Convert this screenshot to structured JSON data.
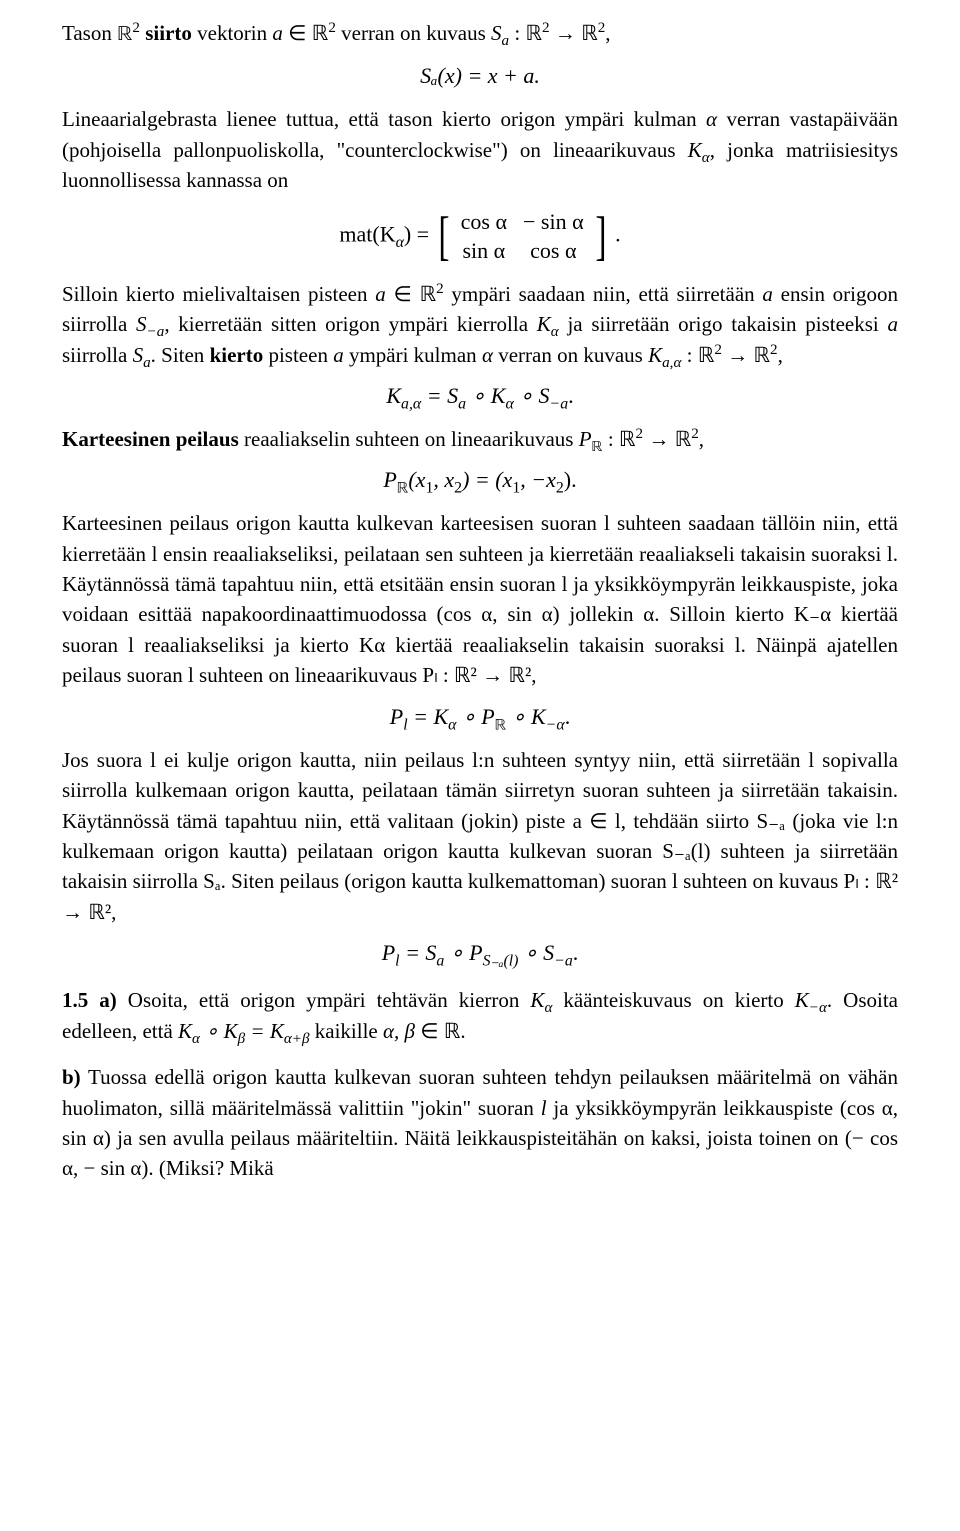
{
  "p1": {
    "a": "Tason ",
    "b": "ℝ",
    "sup2": "2",
    "c": " siirto",
    "d": " vektorin ",
    "e": "a",
    "f": " ∈ ℝ",
    "g": " verran on kuvaus ",
    "h": "S",
    "i": " : ℝ",
    "j": " → ℝ",
    "k": ","
  },
  "eq1": "Sₐ(x) = x + a.",
  "p2": {
    "a": "Lineaarialgebrasta lienee tuttua, että tason kierto origon ympäri kulman ",
    "alpha": "α",
    "b": " verran vastapäivään (pohjoisella pallonpuoliskolla, \"counterclockwise\") on lineaarikuvaus ",
    "c": "K",
    "d": ", jonka matriisiesitys luonnollisessa kannassa on"
  },
  "matrix": {
    "lhs": "mat(K",
    "alpha": "α",
    "eq": ") = ",
    "r1c1": "cos α",
    "r1c2": "− sin α",
    "r2c1": "sin α",
    "r2c2": "cos α",
    "period": "."
  },
  "p3": {
    "a": "Silloin kierto mielivaltaisen pisteen ",
    "b": "a",
    "c": " ∈ ℝ",
    "sup2": "2",
    "d": " ympäri saadaan niin, että siirretään ",
    "e": "a",
    "f": " ensin origoon siirrolla ",
    "g": "S",
    "sub1": "−a",
    "h": ", kierretään sitten origon ympäri kierrolla ",
    "i": "K",
    "sub2": "α",
    "j": " ja siirretään origo takaisin pisteeksi ",
    "k": "a",
    "l": " siirrolla ",
    "m": "S",
    "sub3": "a",
    "n": ". Siten ",
    "bold": "kierto",
    "o": " pisteen ",
    "p": "a",
    "q": " ympäri kulman ",
    "r": "α",
    "s": " verran on kuvaus ",
    "t": "K",
    "sub4": "a,α",
    "u": " : ℝ",
    "v": " → ℝ",
    "w": ","
  },
  "eq2": {
    "a": "K",
    "sub1": "a,α",
    "b": " = S",
    "sub2": "a",
    "c": " ∘ K",
    "sub3": "α",
    "d": " ∘ S",
    "sub4": "−a",
    "e": "."
  },
  "p4": {
    "bold": "Karteesinen peilaus",
    "a": " reaaliakselin suhteen on lineaarikuvaus ",
    "b": "P",
    "sub": "ℝ",
    "c": " : ℝ",
    "sup2": "2",
    "d": " → ℝ",
    "e": ","
  },
  "eq3": {
    "a": "P",
    "sub": "ℝ",
    "b": "(x",
    "s1": "1",
    "c": ", x",
    "s2": "2",
    "d": ") = (x",
    "e": ", −x",
    "f": ")."
  },
  "p5": "Karteesinen peilaus origon kautta kulkevan karteesisen suoran l suhteen saadaan tällöin niin, että kierretään l ensin reaaliakseliksi, peilataan sen suhteen ja kierretään reaaliakseli takaisin suoraksi l. Käytännössä tämä tapahtuu niin, että etsitään ensin suoran l ja yksikköympyrän leikkauspiste, joka voidaan esittää napakoordinaattimuodossa (cos α, sin α) jollekin α. Silloin kierto K₋α kiertää suoran l reaaliakseliksi ja kierto Kα kiertää reaaliakselin takaisin suoraksi l. Näinpä ajatellen peilaus suoran l suhteen on lineaarikuvaus Pₗ : ℝ² → ℝ²,",
  "eq4": {
    "a": "P",
    "sub1": "l",
    "b": " = K",
    "sub2": "α",
    "c": " ∘ P",
    "sub3": "ℝ",
    "d": " ∘ K",
    "sub4": "−α",
    "e": "."
  },
  "p6": "Jos suora l ei kulje origon kautta, niin peilaus l:n suhteen syntyy niin, että siirretään l sopivalla siirrolla kulkemaan origon kautta, peilataan tämän siirretyn suoran suhteen ja siirretään takaisin. Käytännössä tämä tapahtuu niin, että valitaan (jokin) piste a ∈ l, tehdään siirto S₋ₐ (joka vie l:n kulkemaan origon kautta) peilataan origon kautta kulkevan suoran S₋ₐ(l) suhteen ja siirretään takaisin siirrolla Sₐ. Siten peilaus (origon kautta kulkemattoman) suoran l suhteen on kuvaus Pₗ : ℝ² → ℝ²,",
  "eq5": {
    "a": "P",
    "sub1": "l",
    "b": " = S",
    "sub2": "a",
    "c": " ∘ P",
    "sub3": "S₋ₐ(l)",
    "d": " ∘ S",
    "sub4": "−a",
    "e": "."
  },
  "p7": {
    "label": "1.5 a)",
    "a": " Osoita, että origon ympäri tehtävän kierron ",
    "b": "K",
    "sub1": "α",
    "c": " käänteiskuvaus on kierto ",
    "d": "K",
    "sub2": "−α",
    "e": ". Osoita edelleen, että ",
    "f": "K",
    "g": " ∘ K",
    "sub3": "β",
    "h": " = K",
    "sub4": "α+β",
    "i": " kaikille ",
    "j": "α, β",
    "k": " ∈ ℝ."
  },
  "p8": {
    "label": "b)",
    "a": " Tuossa edellä origon kautta kulkevan suoran suhteen tehdyn peilauksen määritelmä on vähän huolimaton, sillä määritelmässä valittiin \"jokin\" suoran ",
    "b": "l",
    "c": " ja yksikköympyrän leikkauspiste (cos α, sin α) ja sen avulla peilaus määriteltiin. Näitä leikkauspisteitähän on kaksi, joista toinen on (− cos α, − sin α). (Miksi? Mikä"
  }
}
